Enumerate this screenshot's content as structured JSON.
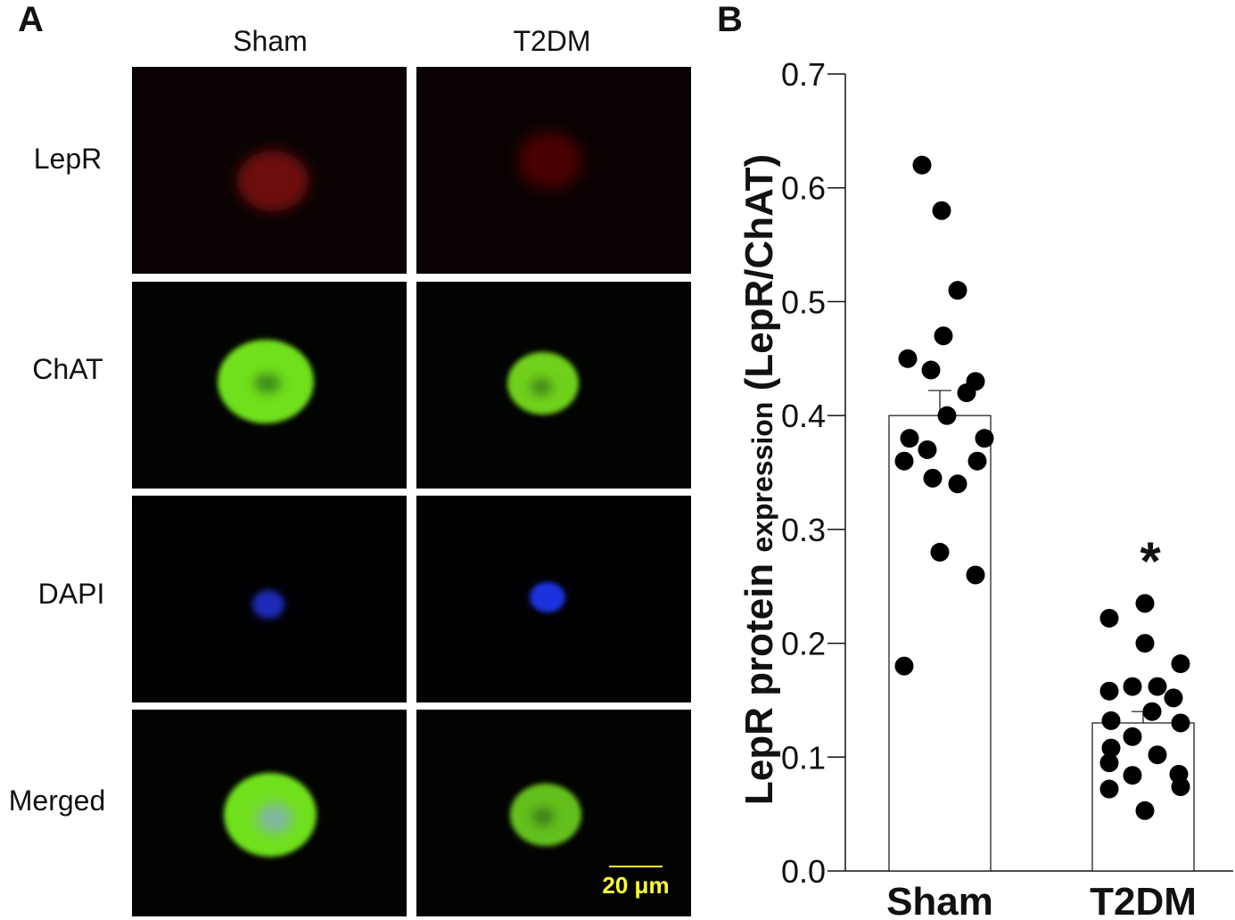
{
  "panel_a": {
    "letter": "A",
    "columns": [
      "Sham",
      "T2DM"
    ],
    "rows": [
      "LepR",
      "ChAT",
      "DAPI",
      "Merged"
    ],
    "scale_bar_label": "20 μm",
    "colors": {
      "lepr": "#7a0a0a",
      "chat": "#6fe01a",
      "dapi": "#1f2fd8",
      "scale": "#ffff33"
    }
  },
  "panel_b": {
    "letter": "B"
  },
  "chart_data": {
    "type": "bar",
    "categories": [
      "Sham",
      "T2DM"
    ],
    "values": [
      0.4,
      0.13
    ],
    "errors": [
      0.022,
      0.01
    ],
    "points": [
      [
        0.62,
        0.58,
        0.51,
        0.47,
        0.45,
        0.44,
        0.43,
        0.42,
        0.4,
        0.38,
        0.38,
        0.37,
        0.36,
        0.36,
        0.345,
        0.34,
        0.28,
        0.26,
        0.18
      ],
      [
        0.235,
        0.222,
        0.2,
        0.182,
        0.162,
        0.162,
        0.158,
        0.152,
        0.14,
        0.132,
        0.13,
        0.118,
        0.108,
        0.102,
        0.095,
        0.085,
        0.084,
        0.074,
        0.072,
        0.053
      ]
    ],
    "ylabel_main": "LepR protein ",
    "ylabel_small": "expression",
    "ylabel_tail": " (LepR/ChAT)",
    "ylim": [
      0,
      0.7
    ],
    "yticks": [
      "0.0",
      "0.1",
      "0.2",
      "0.3",
      "0.4",
      "0.5",
      "0.6",
      "0.7"
    ],
    "annotation": "*",
    "grid": false,
    "bar_color": "#ffffff",
    "point_color": "#000000"
  }
}
